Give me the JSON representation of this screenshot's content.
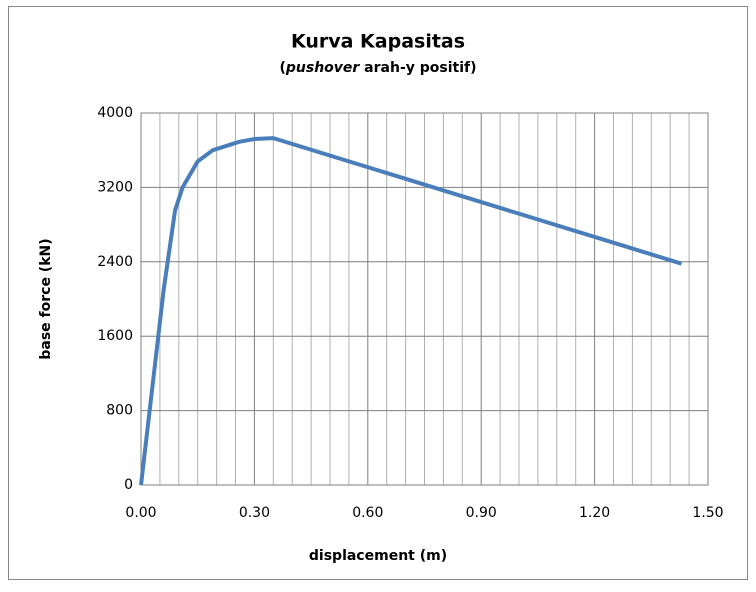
{
  "chart_data": {
    "type": "line",
    "title": "Kurva Kapasitas",
    "subtitle": [
      "(",
      "pushover",
      " arah-y positif)"
    ],
    "xlabel": "displacement (m)",
    "ylabel": "base force (kN)",
    "x": [
      0,
      0.06,
      0.09,
      0.11,
      0.15,
      0.19,
      0.26,
      0.3,
      0.35,
      1.43
    ],
    "series": [
      {
        "name": "pushover",
        "color": "#4a7ebb",
        "values": [
          0,
          2100,
          2950,
          3200,
          3480,
          3600,
          3690,
          3720,
          3730,
          2380
        ]
      }
    ],
    "xlim": [
      0,
      1.5
    ],
    "ylim": [
      0,
      4000
    ],
    "xticks": [
      {
        "value": 0,
        "label": "0.00"
      },
      {
        "value": 0.3,
        "label": "0.30"
      },
      {
        "value": 0.6,
        "label": "0.60"
      },
      {
        "value": 0.9,
        "label": "0.90"
      },
      {
        "value": 1.2,
        "label": "1.20"
      },
      {
        "value": 1.5,
        "label": "1.50"
      }
    ],
    "xminorticks": [
      0.05,
      0.1,
      0.15,
      0.2,
      0.25,
      0.35,
      0.4,
      0.45,
      0.5,
      0.55,
      0.65,
      0.7,
      0.75,
      0.8,
      0.85,
      0.95,
      1.0,
      1.05,
      1.1,
      1.15,
      1.25,
      1.3,
      1.35,
      1.4,
      1.45
    ],
    "yticks": [
      0,
      800,
      1600,
      2400,
      3200,
      4000
    ],
    "grid": true
  }
}
